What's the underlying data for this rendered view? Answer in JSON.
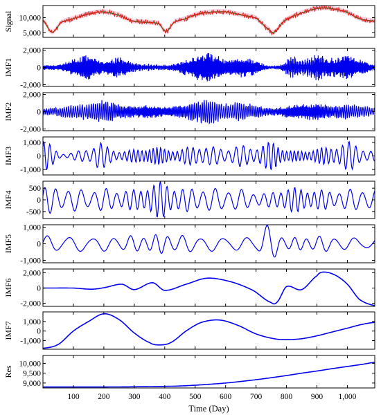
{
  "chart_data": {
    "type": "line",
    "xlabel": "Time (Day)",
    "xlim": [
      0,
      1090
    ],
    "xticks": [
      100,
      200,
      300,
      400,
      500,
      600,
      700,
      800,
      900,
      1000
    ],
    "xtick_labels": [
      "100",
      "200",
      "300",
      "400",
      "500",
      "600",
      "700",
      "800",
      "900",
      "1,000"
    ],
    "colors": {
      "primary": "#0000ee",
      "signal": "#e8201a",
      "signal_fit": "#1d7a1d",
      "band": "#f4c8de"
    },
    "panels": [
      {
        "ylabel": "Signal",
        "ylim": [
          3500,
          14000
        ],
        "yticks": [
          5000,
          10000
        ],
        "ytick_labels": [
          "5,000",
          "10,000"
        ],
        "series": [
          {
            "x": [
              0,
              30,
              60,
              100,
              150,
              200,
              250,
              290,
              330,
              380,
              405,
              430,
              470,
              510,
              550,
              600,
              650,
              700,
              740,
              760,
              790,
              830,
              880,
              920,
              960,
              1000,
              1040,
              1090
            ],
            "y": [
              9000,
              5200,
              8400,
              9700,
              11200,
              11900,
              10800,
              9000,
              8500,
              8000,
              5500,
              8400,
              9700,
              11200,
              11800,
              11900,
              10900,
              9800,
              6300,
              5200,
              8700,
              10800,
              12500,
              13200,
              12800,
              11700,
              9600,
              8900
            ]
          }
        ]
      },
      {
        "ylabel": "IMF1",
        "ylim": [
          -2200,
          2200
        ],
        "yticks": [
          -2000,
          0,
          2000
        ],
        "ytick_labels": [
          "-2,000",
          "0",
          "2,000"
        ],
        "series": [
          {
            "envelope_x": [
              0,
              60,
              100,
              150,
              200,
              250,
              300,
              350,
              400,
              450,
              500,
              540,
              600,
              650,
              700,
              740,
              780,
              820,
              860,
              900,
              950,
              1000,
              1040,
              1090
            ],
            "envelope_y": [
              250,
              350,
              900,
              1300,
              700,
              1100,
              500,
              400,
              300,
              600,
              1200,
              1600,
              900,
              1100,
              700,
              200,
              300,
              1200,
              900,
              1400,
              1000,
              1300,
              800,
              300
            ]
          }
        ]
      },
      {
        "ylabel": "IMF2",
        "ylim": [
          -2200,
          2200
        ],
        "yticks": [
          -2000,
          0,
          2000
        ],
        "ytick_labels": [
          "-2,000",
          "0",
          "2,000"
        ],
        "series": [
          {
            "envelope_x": [
              0,
              50,
              100,
              150,
              200,
              250,
              300,
              350,
              400,
              450,
              500,
              540,
              600,
              650,
              700,
              750,
              800,
              850,
              900,
              950,
              1000,
              1050,
              1090
            ],
            "envelope_y": [
              300,
              500,
              700,
              900,
              1200,
              800,
              600,
              700,
              500,
              700,
              1000,
              1300,
              900,
              1000,
              700,
              400,
              600,
              800,
              900,
              700,
              800,
              600,
              400
            ]
          }
        ]
      },
      {
        "ylabel": "IMF3",
        "ylim": [
          -1400,
          1400
        ],
        "yticks": [
          -1000,
          0,
          1000
        ],
        "ytick_labels": [
          "-1,000",
          "0",
          "1,000"
        ],
        "series": [
          {
            "envelope_x": [
              0,
              20,
              60,
              120,
              160,
              180,
              220,
              260,
              300,
              350,
              400,
              450,
              500,
              550,
              600,
              650,
              700,
              760,
              800,
              850,
              900,
              950,
              1000,
              1050,
              1090
            ],
            "envelope_y": [
              1300,
              900,
              200,
              400,
              700,
              1100,
              600,
              400,
              500,
              700,
              600,
              500,
              800,
              700,
              600,
              800,
              700,
              1100,
              500,
              400,
              600,
              700,
              1100,
              600,
              400
            ]
          }
        ]
      },
      {
        "ylabel": "IMF4",
        "ylim": [
          -800,
          800
        ],
        "yticks": [
          -500,
          0,
          500
        ],
        "ytick_labels": [
          "-500",
          "0",
          "500"
        ],
        "series": [
          {
            "envelope_x": [
              0,
              50,
              100,
              150,
              200,
              250,
              300,
              360,
              400,
              450,
              500,
              550,
              600,
              650,
              700,
              740,
              800,
              850,
              900,
              950,
              1000,
              1050,
              1090
            ],
            "envelope_y": [
              600,
              550,
              500,
              450,
              500,
              450,
              450,
              700,
              800,
              500,
              550,
              500,
              500,
              450,
              350,
              300,
              550,
              500,
              450,
              400,
              450,
              500,
              450
            ]
          }
        ]
      },
      {
        "ylabel": "IMF5",
        "ylim": [
          -1150,
          1150
        ],
        "yticks": [
          -1000,
          0,
          1000
        ],
        "ytick_labels": [
          "-1,000",
          "0",
          "1,000"
        ],
        "series": [
          {
            "envelope_x": [
              0,
              100,
              200,
              300,
              400,
              500,
              600,
              700,
              730,
              760,
              800,
              900,
              1000,
              1090
            ],
            "envelope_y": [
              500,
              500,
              450,
              500,
              600,
              500,
              450,
              500,
              1100,
              1000,
              400,
              500,
              400,
              350
            ]
          }
        ]
      },
      {
        "ylabel": "IMF6",
        "ylim": [
          -2400,
          2500
        ],
        "yticks": [
          -2000,
          0,
          2000
        ],
        "ytick_labels": [
          "-2,000",
          "0",
          "2,000"
        ],
        "series": [
          {
            "x": [
              0,
              100,
              160,
              200,
              260,
              300,
              360,
              400,
              470,
              540,
              620,
              690,
              750,
              770,
              800,
              850,
              900,
              920,
              960,
              1000,
              1040,
              1090
            ],
            "y": [
              0,
              0,
              -150,
              50,
              500,
              -200,
              700,
              -300,
              500,
              1300,
              800,
              -300,
              -1900,
              -1800,
              200,
              -200,
              1600,
              2100,
              1700,
              500,
              -1500,
              -2300
            ]
          }
        ]
      },
      {
        "ylabel": "IMF7",
        "ylim": [
          -1900,
          2000
        ],
        "yticks": [
          -1000,
          0,
          1000
        ],
        "ytick_labels": [
          "-1,000",
          "0",
          "1,000"
        ],
        "series": [
          {
            "x": [
              0,
              50,
              100,
              150,
              200,
              250,
              300,
              350,
              380,
              420,
              470,
              520,
              580,
              640,
              700,
              760,
              800,
              850,
              900,
              950,
              1000,
              1050,
              1090
            ],
            "y": [
              -1800,
              -1400,
              0,
              1000,
              1800,
              1200,
              -200,
              -1200,
              -1450,
              -1200,
              0,
              900,
              1150,
              600,
              -300,
              -800,
              -900,
              -800,
              -500,
              -100,
              300,
              700,
              900
            ]
          }
        ]
      },
      {
        "ylabel": "Res",
        "ylim": [
          8750,
          10400
        ],
        "yticks": [
          9000,
          9500,
          10000
        ],
        "ytick_labels": [
          "9,000",
          "9,500",
          "10,000"
        ],
        "series": [
          {
            "x": [
              0,
              100,
              200,
              300,
              400,
              450,
              500,
              550,
              600,
              650,
              700,
              750,
              800,
              850,
              900,
              950,
              1000,
              1050,
              1090
            ],
            "y": [
              8800,
              8800,
              8800,
              8810,
              8830,
              8850,
              8890,
              8940,
              9000,
              9080,
              9170,
              9270,
              9380,
              9500,
              9610,
              9730,
              9840,
              9950,
              10050
            ]
          }
        ]
      }
    ]
  }
}
